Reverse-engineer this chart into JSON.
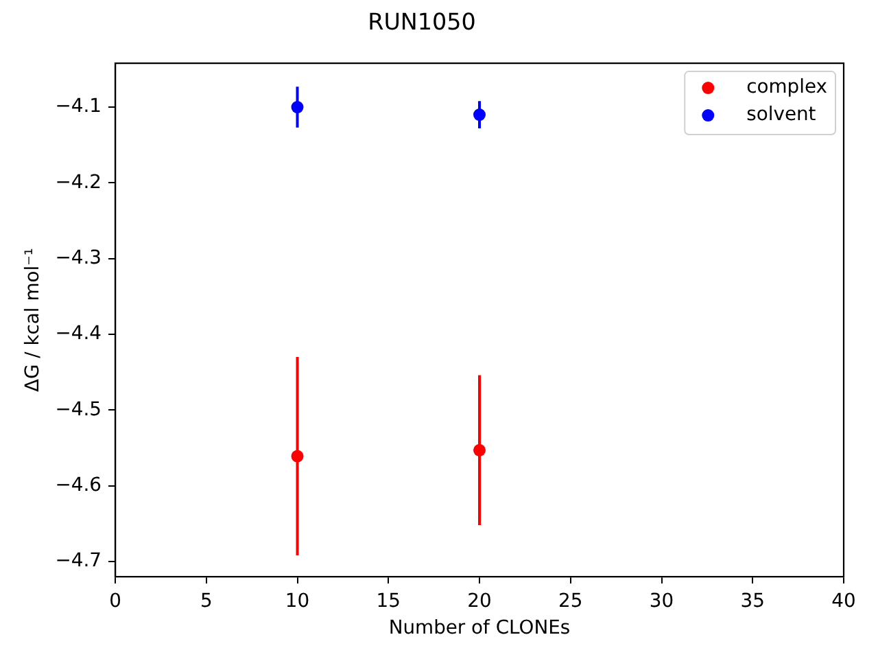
{
  "chart_data": {
    "type": "scatter",
    "title": "RUN1050",
    "xlabel": "Number of CLONEs",
    "ylabel": "ΔG / kcal mol⁻¹",
    "x": [
      10,
      20
    ],
    "series": [
      {
        "name": "complex",
        "color": "#ff0000",
        "values": [
          -4.561,
          -4.553
        ],
        "errors": [
          0.131,
          0.099
        ]
      },
      {
        "name": "solvent",
        "color": "#0000ff",
        "values": [
          -4.1,
          -4.11
        ],
        "errors": [
          0.027,
          0.018
        ]
      }
    ],
    "xlim": [
      0,
      40
    ],
    "xticks": [
      0,
      5,
      10,
      15,
      20,
      25,
      30,
      35,
      40
    ],
    "ylim": [
      -4.72,
      -4.042
    ],
    "yticks": [
      -4.7,
      -4.6,
      -4.5,
      -4.4,
      -4.3,
      -4.2,
      -4.1
    ],
    "legend": "top right",
    "marker": "circle",
    "grid": false
  }
}
